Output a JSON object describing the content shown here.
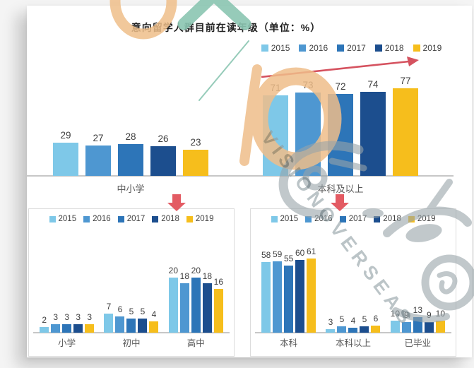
{
  "card": {
    "title": "意向留学人群目前在读年级（单位：%）"
  },
  "years": [
    {
      "label": "2015",
      "color": "#7EC8E8"
    },
    {
      "label": "2016",
      "color": "#4E97D1"
    },
    {
      "label": "2017",
      "color": "#2D75B8"
    },
    {
      "label": "2018",
      "color": "#1C4E8E"
    },
    {
      "label": "2019",
      "color": "#F6BE1C"
    }
  ],
  "watermark": {
    "text": "VISIONOVERSEAS"
  },
  "annotations": {
    "trend_arrow": {
      "over": "本科及以上",
      "direction": "up",
      "color": "#D5525F"
    },
    "connectors": [
      {
        "from": "中小学",
        "to": "小学/初中/高中 明细图",
        "shape": "red-down-arrow"
      },
      {
        "from": "本科及以上",
        "to": "本科/本科以上/已毕业 明细图",
        "shape": "red-down-arrow"
      }
    ]
  },
  "chart_data": [
    {
      "type": "bar",
      "title": "意向留学人群目前在读年级（单位：%）",
      "categories": [
        "中小学",
        "本科及以上"
      ],
      "series": [
        {
          "name": "2015",
          "values": [
            29,
            71
          ]
        },
        {
          "name": "2016",
          "values": [
            27,
            73
          ]
        },
        {
          "name": "2017",
          "values": [
            28,
            72
          ]
        },
        {
          "name": "2018",
          "values": [
            26,
            74
          ]
        },
        {
          "name": "2019",
          "values": [
            23,
            77
          ]
        }
      ],
      "ylabel": "%",
      "ylim": [
        0,
        80
      ],
      "grid": false,
      "legend_position": "top-right",
      "value_labels": true
    },
    {
      "type": "bar",
      "title": "",
      "categories": [
        "小学",
        "初中",
        "高中"
      ],
      "series": [
        {
          "name": "2015",
          "values": [
            2,
            7,
            20
          ]
        },
        {
          "name": "2016",
          "values": [
            3,
            6,
            18
          ]
        },
        {
          "name": "2017",
          "values": [
            3,
            5,
            20
          ]
        },
        {
          "name": "2018",
          "values": [
            3,
            5,
            18
          ]
        },
        {
          "name": "2019",
          "values": [
            3,
            4,
            16
          ]
        }
      ],
      "ylabel": "%",
      "ylim": [
        0,
        22
      ],
      "grid": false,
      "legend_position": "top",
      "value_labels": true
    },
    {
      "type": "bar",
      "title": "",
      "categories": [
        "本科",
        "本科以上",
        "已毕业"
      ],
      "series": [
        {
          "name": "2015",
          "values": [
            58,
            3,
            10
          ]
        },
        {
          "name": "2016",
          "values": [
            59,
            5,
            9
          ]
        },
        {
          "name": "2017",
          "values": [
            55,
            4,
            13
          ]
        },
        {
          "name": "2018",
          "values": [
            60,
            5,
            9
          ]
        },
        {
          "name": "2019",
          "values": [
            61,
            6,
            10
          ]
        }
      ],
      "ylabel": "%",
      "ylim": [
        0,
        65
      ],
      "grid": false,
      "legend_position": "top",
      "value_labels": true
    }
  ]
}
